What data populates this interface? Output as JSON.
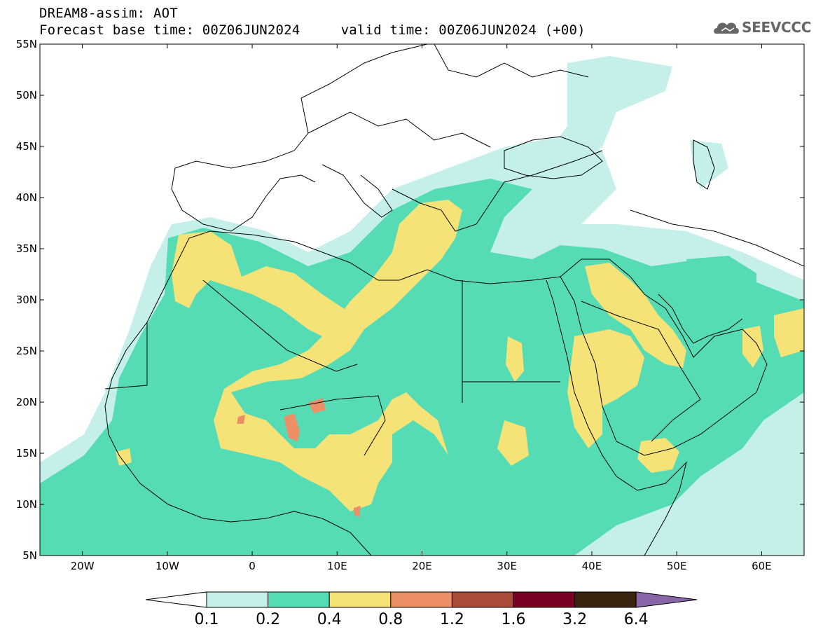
{
  "header": {
    "line1": "DREAM8-assim: AOT",
    "line2": "Forecast base time: 00Z06JUN2024     valid time: 00Z06JUN2024 (+00)",
    "logo_text": "SEEVCCC"
  },
  "map": {
    "lat_labels": [
      "55N",
      "50N",
      "45N",
      "40N",
      "35N",
      "30N",
      "25N",
      "20N",
      "15N",
      "10N",
      "5N"
    ],
    "lon_labels": [
      "20W",
      "10W",
      "0",
      "10E",
      "20E",
      "30E",
      "40E",
      "50E",
      "60E"
    ],
    "lat_range": [
      5,
      55
    ],
    "lon_range": [
      -25,
      65
    ]
  },
  "colorbar": {
    "labels": [
      "0.1",
      "0.2",
      "0.4",
      "0.8",
      "1.2",
      "1.6",
      "3.2",
      "6.4"
    ],
    "colors": [
      "#ffffff",
      "#c4f0e9",
      "#56dcb4",
      "#f5e377",
      "#ec8f66",
      "#a94c3a",
      "#7a0025",
      "#3a2410",
      "#8a66a8"
    ]
  },
  "colors": {
    "low": "#c4f0e9",
    "medium": "#56dcb4",
    "high": "#f5e377",
    "very_high": "#ec8f66",
    "extreme": "#a94c3a"
  }
}
